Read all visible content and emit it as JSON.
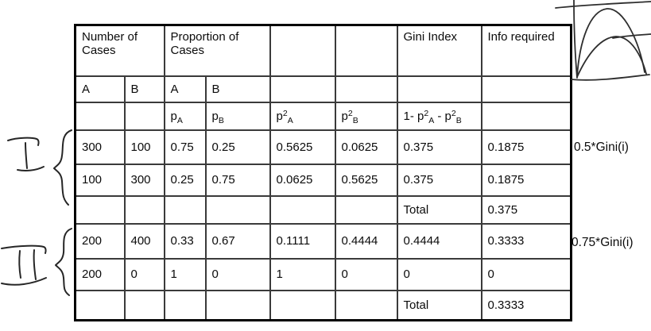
{
  "table": {
    "header": [
      {
        "label": "Number of Cases",
        "colspan": 2
      },
      {
        "label": "Proportion of Cases",
        "colspan": 2
      },
      {
        "label": "",
        "colspan": 1
      },
      {
        "label": "",
        "colspan": 1
      },
      {
        "label": "Gini Index",
        "colspan": 1
      },
      {
        "label": "Info required",
        "colspan": 1
      }
    ],
    "rows": [
      [
        "A",
        "B",
        "A",
        "B",
        "",
        "",
        "",
        ""
      ],
      [
        "",
        "",
        "p_A",
        "p_B",
        "p^2_A",
        "p^2_B",
        "1- p^2_A - p^2_B",
        ""
      ],
      [
        "300",
        "100",
        "0.75",
        "0.25",
        "0.5625",
        "0.0625",
        "0.375",
        "0.1875"
      ],
      [
        "100",
        "300",
        "0.25",
        "0.75",
        "0.0625",
        "0.5625",
        "0.375",
        "0.1875"
      ],
      [
        "",
        "",
        "",
        "",
        "",
        "",
        "Total",
        "0.375"
      ],
      [
        "200",
        "400",
        "0.33",
        "0.67",
        "0.1111",
        "0.4444",
        "0.4444",
        "0.3333"
      ],
      [
        "200",
        "0",
        "1",
        "0",
        "1",
        "0",
        "0",
        "0"
      ],
      [
        "",
        "",
        "",
        "",
        "",
        "",
        "Total",
        "0.3333"
      ]
    ]
  },
  "annotations": {
    "group1_label": "I",
    "group2_label": "II",
    "note1": "0.5*Gini(i)",
    "note2": "0.75*Gini(i)"
  },
  "colors": {
    "background": "#ffffff",
    "table_border": "#000000",
    "grid_line": "#3a3a3a",
    "ink": "#262626"
  }
}
